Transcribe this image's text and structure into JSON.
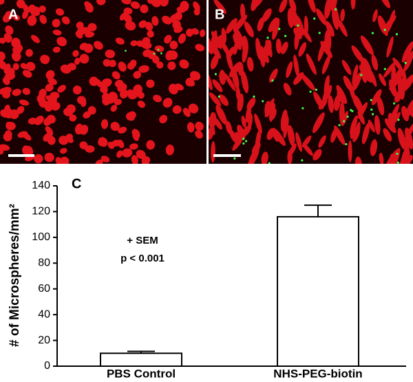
{
  "panels": [
    {
      "label": "A"
    },
    {
      "label": "B"
    }
  ],
  "chart_data": {
    "type": "bar",
    "panel_label": "C",
    "ylabel": "# of Microspheres/mm²",
    "categories": [
      "PBS Control",
      "NHS-PEG-biotin"
    ],
    "values": [
      10,
      116
    ],
    "errors": [
      1.5,
      9
    ],
    "color": "#ffffff",
    "ylim": [
      0,
      140
    ],
    "yticks": [
      0,
      20,
      40,
      60,
      80,
      100,
      120,
      140
    ],
    "annotations": [
      "+ SEM",
      "p < 0.001"
    ]
  }
}
